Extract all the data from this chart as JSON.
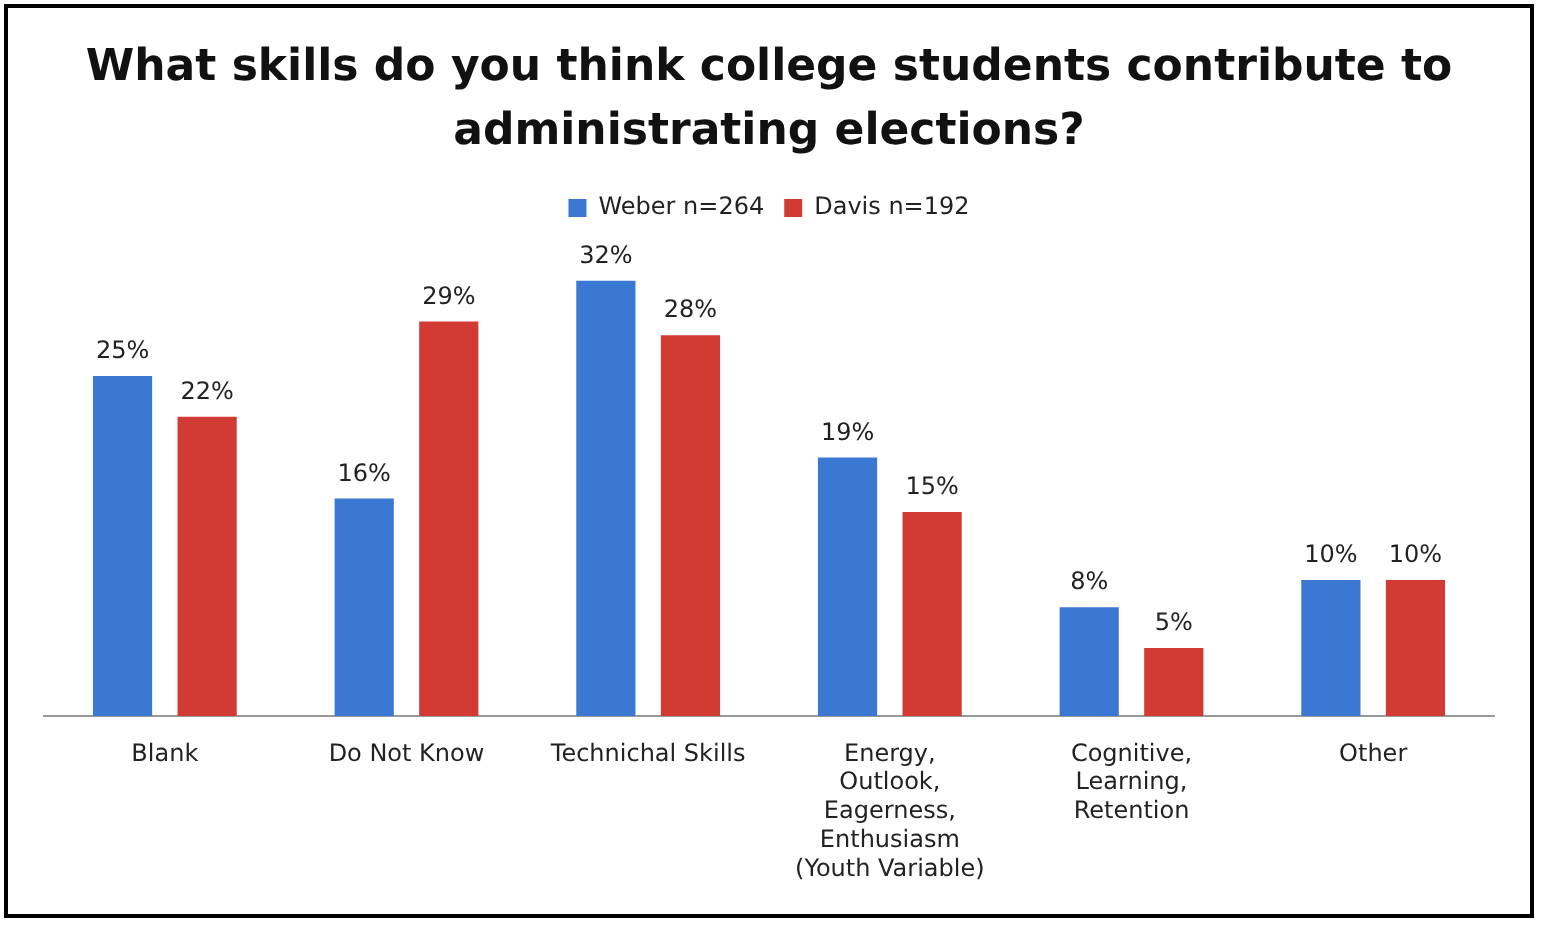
{
  "chart_data": {
    "type": "bar",
    "title": "What skills do you think college students contribute to administrating elections?",
    "categories": [
      "Blank",
      "Do Not Know",
      "Technichal Skills",
      "Energy, Outlook, Eagerness, Enthusiasm (Youth Variable)",
      "Cognitive, Learning, Retention",
      "Other"
    ],
    "series": [
      {
        "name": "Weber n=264",
        "color": "#3a78d4",
        "values": [
          25,
          16,
          32,
          19,
          8,
          10
        ],
        "value_labels": [
          "25%",
          "16%",
          "32%",
          "19%",
          "8%",
          "10%"
        ]
      },
      {
        "name": "Davis n=192",
        "color": "#d23a34",
        "values": [
          22,
          29,
          28,
          15,
          5,
          10
        ],
        "value_labels": [
          "22%",
          "29%",
          "28%",
          "15%",
          "5%",
          "10%"
        ]
      }
    ],
    "legend": "top",
    "grid": false,
    "tick_labels": "x"
  }
}
